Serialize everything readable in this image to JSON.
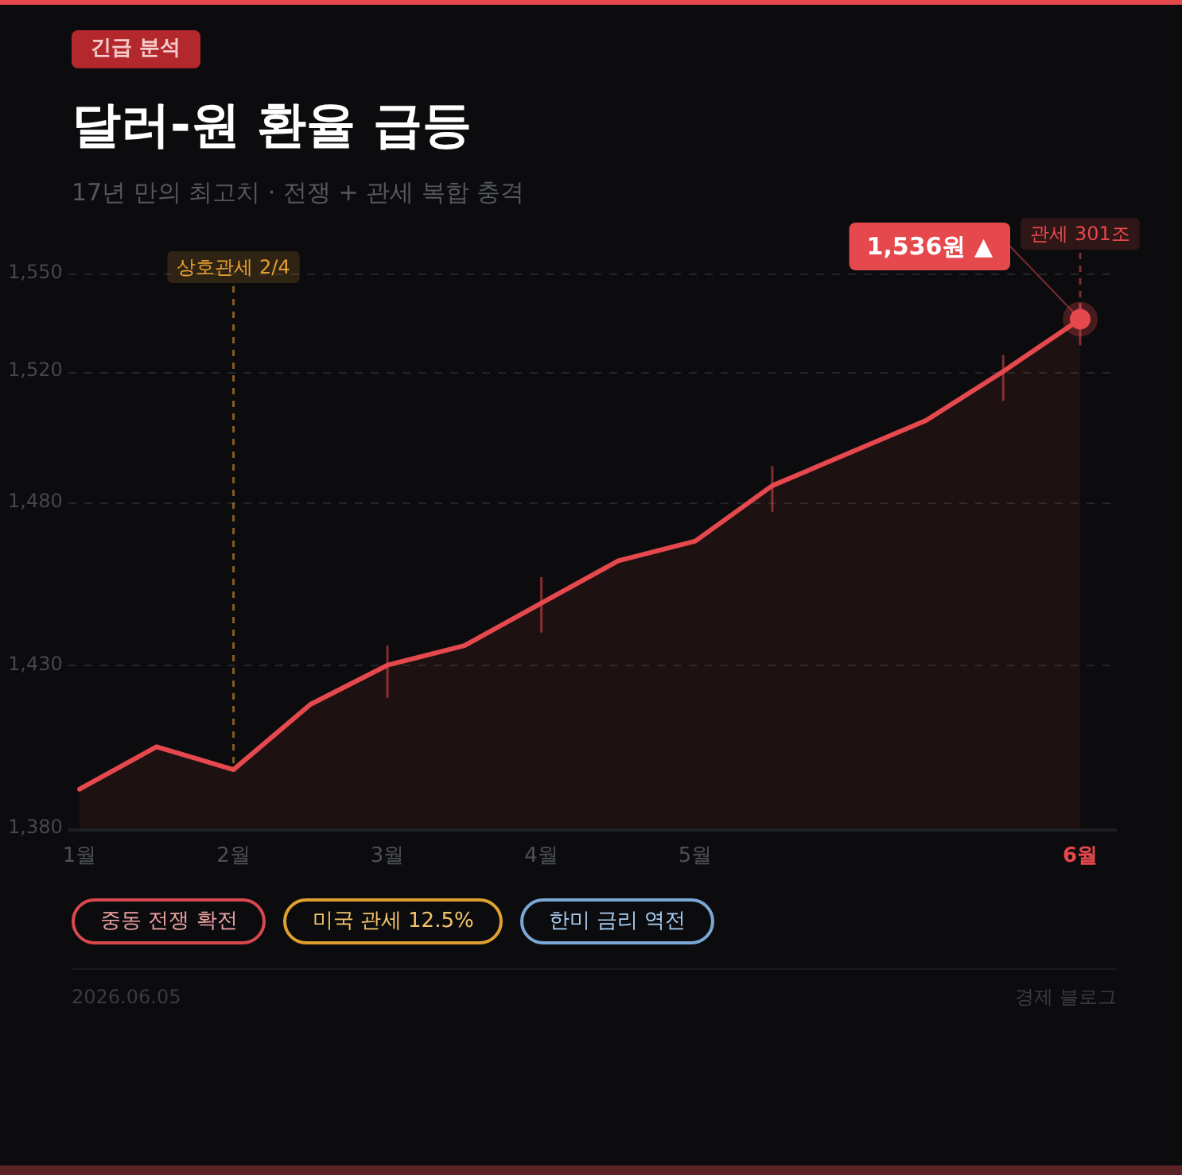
{
  "chart_data": {
    "type": "area",
    "title": "달러-원 환율 급등",
    "subtitle": "17년 만의 최고치 · 전쟁 + 관세 복합 충격",
    "categories": [
      "1월",
      null,
      "2월",
      null,
      "3월",
      null,
      "4월",
      null,
      "5월",
      null,
      null,
      null,
      null,
      "6월"
    ],
    "values": [
      1392,
      1405,
      1398,
      1418,
      1430,
      1436,
      1449,
      1462,
      1468,
      1485,
      1495,
      1505,
      1520,
      1536
    ],
    "color": "#e5484d",
    "errors": [
      null,
      null,
      null,
      null,
      [
        1420,
        1436
      ],
      null,
      [
        1440,
        1457
      ],
      null,
      null,
      [
        1477,
        1491
      ],
      null,
      null,
      [
        1511,
        1525
      ],
      [
        1528,
        1541
      ]
    ],
    "value_labels": [
      null,
      null,
      null,
      null,
      null,
      null,
      null,
      null,
      null,
      null,
      null,
      null,
      null,
      "1,536원 ▲"
    ],
    "ylim": [
      1380,
      1550
    ],
    "yticks": [
      {
        "value": 1380,
        "label": "1,380"
      },
      {
        "value": 1430,
        "label": "1,430"
      },
      {
        "value": 1480,
        "label": "1,480"
      },
      {
        "value": 1520,
        "label": "1,520"
      },
      {
        "value": 1550,
        "label": "1,550"
      }
    ],
    "grid": "y",
    "ref_lines": [
      {
        "axis": "x",
        "value": "2월",
        "label": "상호관세 2/4",
        "color": "#e8a030",
        "line_style": "dashed"
      },
      {
        "axis": "x",
        "value": "6월",
        "label": "관세 301조",
        "color": "#e5484d",
        "line_style": "dashed"
      }
    ],
    "annotations": [
      "긴급 분석",
      "중동 전쟁 확전",
      "미국 관세 12.5%",
      "한미 금리 역전",
      "2026.06.05",
      "경제 블로그"
    ]
  }
}
